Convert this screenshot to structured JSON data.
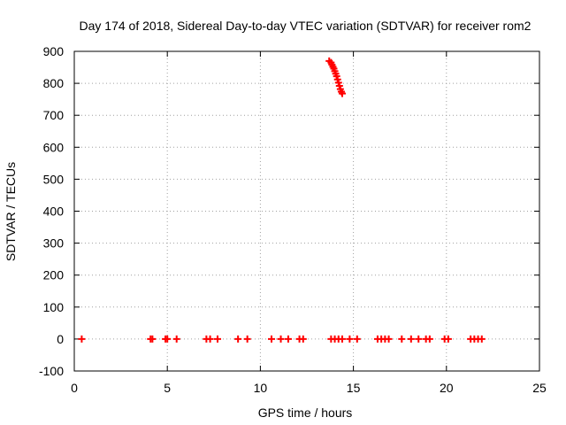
{
  "chart_data": {
    "type": "scatter",
    "title": "Day 174 of 2018, Sidereal Day-to-day VTEC variation (SDTVAR) for receiver rom2",
    "xlabel": "GPS time / hours",
    "ylabel": "SDTVAR / TECUs",
    "xlim": [
      0,
      25
    ],
    "ylim": [
      -100,
      900
    ],
    "xticks": [
      0,
      5,
      10,
      15,
      20,
      25
    ],
    "yticks": [
      -100,
      0,
      100,
      200,
      300,
      400,
      500,
      600,
      700,
      800,
      900
    ],
    "grid": true,
    "marker": "+",
    "color": "#ff0000",
    "series": [
      {
        "name": "SDTVAR",
        "points": [
          [
            0.4,
            0
          ],
          [
            4.1,
            0
          ],
          [
            4.2,
            0
          ],
          [
            4.9,
            0
          ],
          [
            5.0,
            0
          ],
          [
            5.5,
            0
          ],
          [
            7.1,
            0
          ],
          [
            7.3,
            0
          ],
          [
            7.7,
            0
          ],
          [
            8.8,
            0
          ],
          [
            9.3,
            0
          ],
          [
            10.6,
            0
          ],
          [
            11.1,
            0
          ],
          [
            11.5,
            0
          ],
          [
            12.1,
            0
          ],
          [
            12.3,
            0
          ],
          [
            13.7,
            870
          ],
          [
            13.8,
            865
          ],
          [
            13.85,
            858
          ],
          [
            13.9,
            852
          ],
          [
            13.95,
            846
          ],
          [
            14.0,
            838
          ],
          [
            14.05,
            830
          ],
          [
            14.1,
            822
          ],
          [
            14.15,
            812
          ],
          [
            14.2,
            802
          ],
          [
            14.25,
            792
          ],
          [
            14.3,
            782
          ],
          [
            14.35,
            774
          ],
          [
            14.4,
            768
          ],
          [
            13.8,
            0
          ],
          [
            14.0,
            0
          ],
          [
            14.2,
            0
          ],
          [
            14.4,
            0
          ],
          [
            14.8,
            0
          ],
          [
            15.2,
            0
          ],
          [
            16.3,
            0
          ],
          [
            16.5,
            0
          ],
          [
            16.7,
            0
          ],
          [
            16.9,
            0
          ],
          [
            17.6,
            0
          ],
          [
            18.1,
            0
          ],
          [
            18.5,
            0
          ],
          [
            18.9,
            0
          ],
          [
            19.1,
            0
          ],
          [
            19.9,
            0
          ],
          [
            20.1,
            0
          ],
          [
            21.3,
            0
          ],
          [
            21.5,
            0
          ],
          [
            21.7,
            0
          ],
          [
            21.9,
            0
          ]
        ]
      }
    ]
  }
}
